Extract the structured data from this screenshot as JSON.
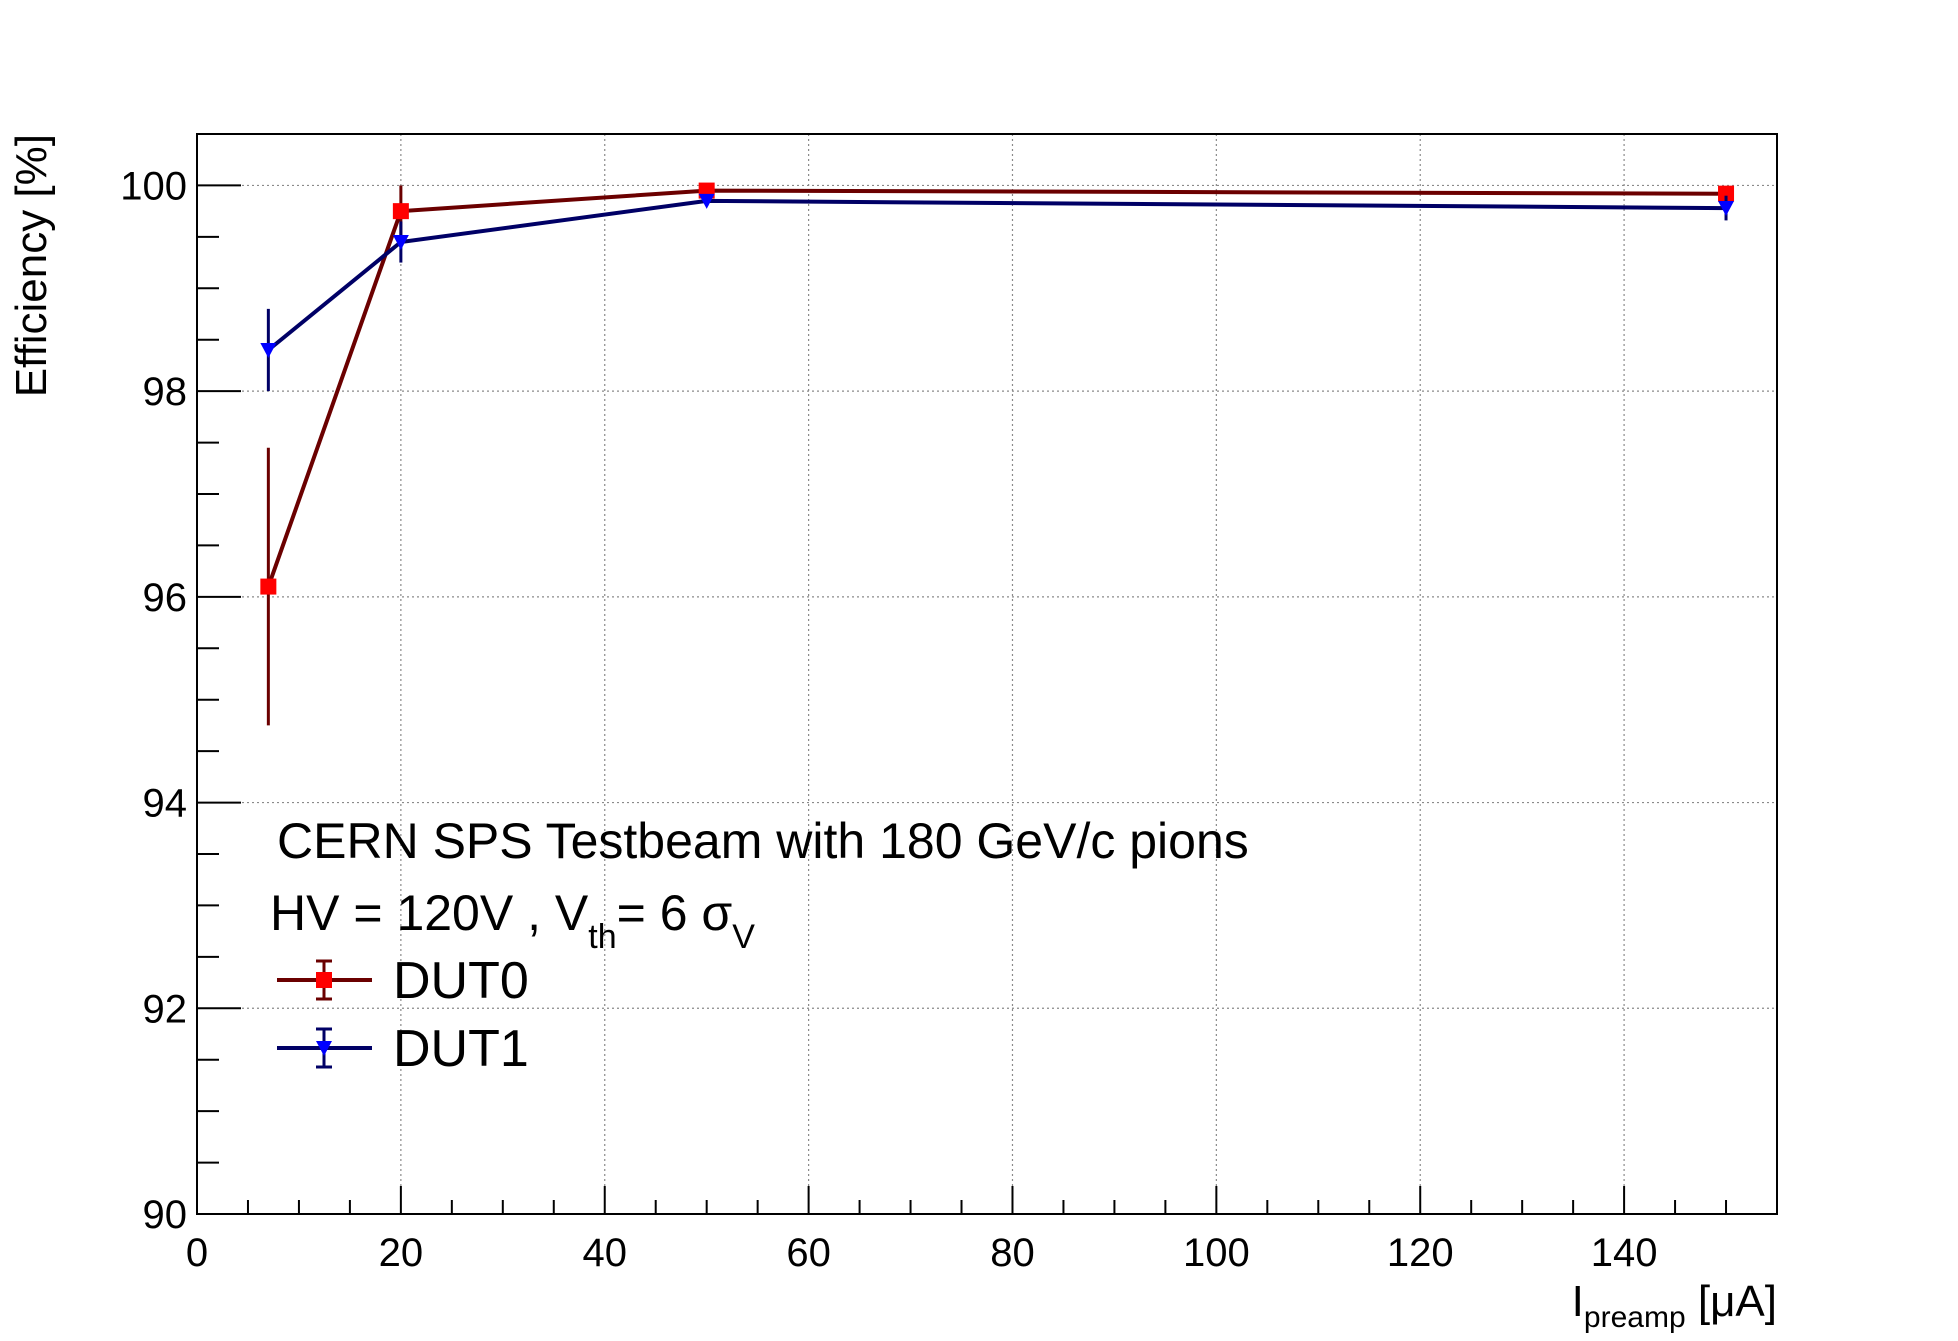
{
  "chart_data": {
    "type": "line",
    "title": "",
    "xlabel": {
      "main": "I",
      "sub": "preamp",
      "unit": " [μA]"
    },
    "ylabel": "Efficiency [%]",
    "xlim": [
      0,
      155
    ],
    "ylim": [
      90,
      100.5
    ],
    "x_ticks": [
      0,
      20,
      40,
      60,
      80,
      100,
      120,
      140
    ],
    "y_ticks": [
      90,
      92,
      94,
      96,
      98,
      100
    ],
    "grid": true,
    "legend_position": "bottom-left",
    "annotations": {
      "line1": "CERN SPS Testbeam with 180 GeV/c pions",
      "line2_a": "HV = 120V , V",
      "line2_sub1": "th",
      "line2_b": "= 6 σ",
      "line2_sub2": "V"
    },
    "series": [
      {
        "name": "DUT0",
        "line_color": "#6b0000",
        "marker_color": "#ff0000",
        "marker": "square",
        "x": [
          7,
          20,
          50,
          150
        ],
        "y": [
          96.1,
          99.75,
          99.95,
          99.92
        ],
        "err": [
          1.35,
          0.25,
          0.04,
          0.06
        ]
      },
      {
        "name": "DUT1",
        "line_color": "#000066",
        "marker_color": "#0000ff",
        "marker": "triangle-down",
        "x": [
          7,
          20,
          50,
          150
        ],
        "y": [
          98.4,
          99.45,
          99.85,
          99.78
        ],
        "err": [
          0.4,
          0.2,
          0.05,
          0.12
        ]
      }
    ]
  }
}
